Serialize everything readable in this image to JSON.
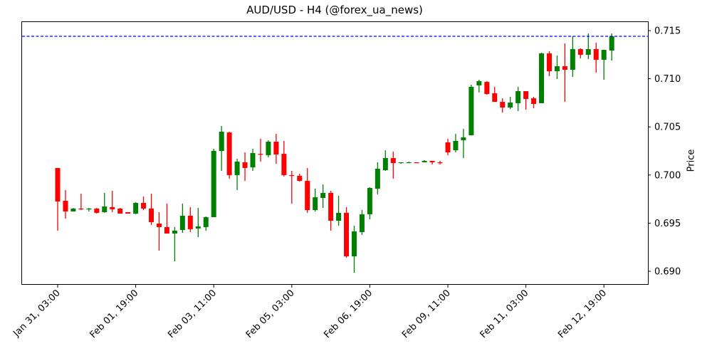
{
  "chart_data": {
    "type": "candlestick",
    "title": "AUD/USD - H4 (@forex_ua_news)",
    "xlabel": "",
    "ylabel": "Price",
    "ylim": [
      0.6885,
      0.7159
    ],
    "yticks": [
      0.69,
      0.695,
      0.7,
      0.705,
      0.71,
      0.715
    ],
    "ytick_labels": [
      "0.690",
      "0.695",
      "0.700",
      "0.705",
      "0.710",
      "0.715"
    ],
    "xtick_labels": [
      "Jan 31, 03:00",
      "Feb 01, 19:00",
      "Feb 03, 11:00",
      "Feb 05, 03:00",
      "Feb 06, 19:00",
      "Feb 09, 11:00",
      "Feb 11, 03:00",
      "Feb 12, 19:00"
    ],
    "xtick_indices": [
      0,
      10,
      20,
      30,
      40,
      50,
      60,
      70
    ],
    "interval": "4h",
    "grid": false,
    "up_color": "#008000",
    "down_color": "#ff0000",
    "hline": {
      "value": 0.71441,
      "color": "#0000ff",
      "style": "dashed"
    },
    "candles": [
      {
        "o": 0.70073,
        "h": 0.70073,
        "l": 0.69422,
        "c": 0.69725
      },
      {
        "o": 0.69732,
        "h": 0.69843,
        "l": 0.69547,
        "c": 0.69621
      },
      {
        "o": 0.69621,
        "h": 0.69658,
        "l": 0.69621,
        "c": 0.69651
      },
      {
        "o": 0.69651,
        "h": 0.69806,
        "l": 0.69636,
        "c": 0.69644
      },
      {
        "o": 0.69644,
        "h": 0.69658,
        "l": 0.69621,
        "c": 0.69651
      },
      {
        "o": 0.69651,
        "h": 0.69658,
        "l": 0.69599,
        "c": 0.69607
      },
      {
        "o": 0.69614,
        "h": 0.69814,
        "l": 0.69607,
        "c": 0.69673
      },
      {
        "o": 0.69666,
        "h": 0.69836,
        "l": 0.69614,
        "c": 0.69644
      },
      {
        "o": 0.69651,
        "h": 0.69658,
        "l": 0.69599,
        "c": 0.69599
      },
      {
        "o": 0.69614,
        "h": 0.69614,
        "l": 0.69599,
        "c": 0.69599
      },
      {
        "o": 0.69599,
        "h": 0.69718,
        "l": 0.69592,
        "c": 0.6971
      },
      {
        "o": 0.6971,
        "h": 0.69777,
        "l": 0.69636,
        "c": 0.69651
      },
      {
        "o": 0.69651,
        "h": 0.69806,
        "l": 0.69481,
        "c": 0.6951
      },
      {
        "o": 0.69496,
        "h": 0.69614,
        "l": 0.69215,
        "c": 0.69459
      },
      {
        "o": 0.69459,
        "h": 0.69703,
        "l": 0.69392,
        "c": 0.69392
      },
      {
        "o": 0.69392,
        "h": 0.69459,
        "l": 0.69104,
        "c": 0.69422
      },
      {
        "o": 0.69429,
        "h": 0.69703,
        "l": 0.694,
        "c": 0.69577
      },
      {
        "o": 0.69577,
        "h": 0.69666,
        "l": 0.69407,
        "c": 0.69437
      },
      {
        "o": 0.69444,
        "h": 0.69658,
        "l": 0.69355,
        "c": 0.69466
      },
      {
        "o": 0.69459,
        "h": 0.6957,
        "l": 0.69422,
        "c": 0.69562
      },
      {
        "o": 0.69562,
        "h": 0.70272,
        "l": 0.69562,
        "c": 0.7025
      },
      {
        "o": 0.7025,
        "h": 0.70509,
        "l": 0.70043,
        "c": 0.7045
      },
      {
        "o": 0.70442,
        "h": 0.7045,
        "l": 0.69962,
        "c": 0.69999
      },
      {
        "o": 0.69999,
        "h": 0.70169,
        "l": 0.69843,
        "c": 0.70139
      },
      {
        "o": 0.70132,
        "h": 0.70235,
        "l": 0.69939,
        "c": 0.70073
      },
      {
        "o": 0.7008,
        "h": 0.70272,
        "l": 0.70043,
        "c": 0.70228
      },
      {
        "o": 0.7022,
        "h": 0.70376,
        "l": 0.70139,
        "c": 0.70213
      },
      {
        "o": 0.70206,
        "h": 0.70361,
        "l": 0.70184,
        "c": 0.70346
      },
      {
        "o": 0.70346,
        "h": 0.70428,
        "l": 0.70117,
        "c": 0.70213
      },
      {
        "o": 0.7022,
        "h": 0.70354,
        "l": 0.69984,
        "c": 0.69999
      },
      {
        "o": 0.69999,
        "h": 0.70043,
        "l": 0.69703,
        "c": 0.69991
      },
      {
        "o": 0.69991,
        "h": 0.70013,
        "l": 0.69932,
        "c": 0.69939
      },
      {
        "o": 0.69939,
        "h": 0.70073,
        "l": 0.69607,
        "c": 0.69636
      },
      {
        "o": 0.69636,
        "h": 0.69858,
        "l": 0.69621,
        "c": 0.69769
      },
      {
        "o": 0.69762,
        "h": 0.69902,
        "l": 0.69658,
        "c": 0.69814
      },
      {
        "o": 0.69814,
        "h": 0.69836,
        "l": 0.69422,
        "c": 0.69525
      },
      {
        "o": 0.69525,
        "h": 0.69784,
        "l": 0.69474,
        "c": 0.69607
      },
      {
        "o": 0.69607,
        "h": 0.69666,
        "l": 0.69141,
        "c": 0.69155
      },
      {
        "o": 0.69155,
        "h": 0.69474,
        "l": 0.68985,
        "c": 0.69414
      },
      {
        "o": 0.69407,
        "h": 0.69636,
        "l": 0.69377,
        "c": 0.69592
      },
      {
        "o": 0.69592,
        "h": 0.69873,
        "l": 0.6954,
        "c": 0.69866
      },
      {
        "o": 0.69858,
        "h": 0.70132,
        "l": 0.69799,
        "c": 0.70065
      },
      {
        "o": 0.7005,
        "h": 0.70257,
        "l": 0.70043,
        "c": 0.70176
      },
      {
        "o": 0.70176,
        "h": 0.70243,
        "l": 0.69962,
        "c": 0.70124
      },
      {
        "o": 0.70124,
        "h": 0.70132,
        "l": 0.70117,
        "c": 0.70132
      },
      {
        "o": 0.70132,
        "h": 0.70139,
        "l": 0.70124,
        "c": 0.70132
      },
      {
        "o": 0.70132,
        "h": 0.70132,
        "l": 0.70124,
        "c": 0.70124
      },
      {
        "o": 0.70132,
        "h": 0.70154,
        "l": 0.70132,
        "c": 0.70147
      },
      {
        "o": 0.70147,
        "h": 0.70147,
        "l": 0.7011,
        "c": 0.70132
      },
      {
        "o": 0.70132,
        "h": 0.70147,
        "l": 0.7011,
        "c": 0.70124
      },
      {
        "o": 0.70339,
        "h": 0.70376,
        "l": 0.70206,
        "c": 0.70235
      },
      {
        "o": 0.70257,
        "h": 0.70428,
        "l": 0.70235,
        "c": 0.70354
      },
      {
        "o": 0.70361,
        "h": 0.70479,
        "l": 0.70176,
        "c": 0.70391
      },
      {
        "o": 0.70413,
        "h": 0.70938,
        "l": 0.70413,
        "c": 0.70916
      },
      {
        "o": 0.70931,
        "h": 0.7099,
        "l": 0.70857,
        "c": 0.70975
      },
      {
        "o": 0.70967,
        "h": 0.70975,
        "l": 0.70834,
        "c": 0.70842
      },
      {
        "o": 0.70849,
        "h": 0.70916,
        "l": 0.7076,
        "c": 0.7076
      },
      {
        "o": 0.7076,
        "h": 0.70797,
        "l": 0.70649,
        "c": 0.70701
      },
      {
        "o": 0.70701,
        "h": 0.70812,
        "l": 0.70686,
        "c": 0.70753
      },
      {
        "o": 0.70746,
        "h": 0.70916,
        "l": 0.70664,
        "c": 0.70871
      },
      {
        "o": 0.70871,
        "h": 0.70871,
        "l": 0.70679,
        "c": 0.7079
      },
      {
        "o": 0.70797,
        "h": 0.70812,
        "l": 0.70694,
        "c": 0.70738
      },
      {
        "o": 0.70746,
        "h": 0.71271,
        "l": 0.70746,
        "c": 0.71263
      },
      {
        "o": 0.71263,
        "h": 0.71286,
        "l": 0.71027,
        "c": 0.71078
      },
      {
        "o": 0.71078,
        "h": 0.71241,
        "l": 0.70997,
        "c": 0.7113
      },
      {
        "o": 0.7113,
        "h": 0.71367,
        "l": 0.7076,
        "c": 0.71093
      },
      {
        "o": 0.71093,
        "h": 0.71441,
        "l": 0.71019,
        "c": 0.71308
      },
      {
        "o": 0.71308,
        "h": 0.71315,
        "l": 0.71212,
        "c": 0.71249
      },
      {
        "o": 0.71249,
        "h": 0.7147,
        "l": 0.71204,
        "c": 0.71308
      },
      {
        "o": 0.71308,
        "h": 0.71374,
        "l": 0.71064,
        "c": 0.71197
      },
      {
        "o": 0.71197,
        "h": 0.713,
        "l": 0.7099,
        "c": 0.713
      },
      {
        "o": 0.71293,
        "h": 0.7147,
        "l": 0.71189,
        "c": 0.71441
      }
    ]
  }
}
